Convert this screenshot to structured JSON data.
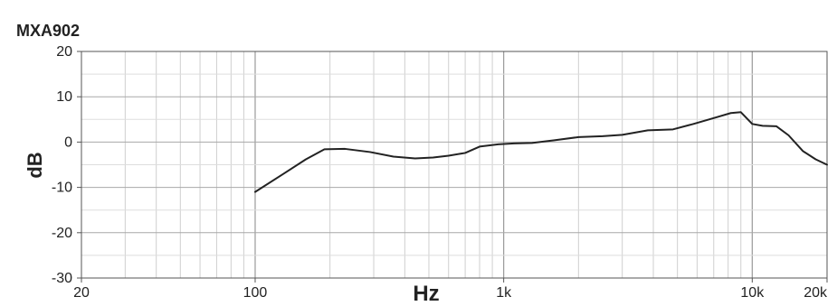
{
  "chart_data": {
    "type": "line",
    "title": "MXA902",
    "xlabel": "Hz",
    "ylabel": "dB",
    "x_scale": "log",
    "xlim": [
      20,
      20000
    ],
    "ylim": [
      -30,
      20
    ],
    "grid": true,
    "x_ticks": [
      {
        "value": 20,
        "label": "20"
      },
      {
        "value": 100,
        "label": "100"
      },
      {
        "value": 1000,
        "label": "1k"
      },
      {
        "value": 10000,
        "label": "10k"
      },
      {
        "value": 20000,
        "label": "20k"
      }
    ],
    "y_ticks": [
      {
        "value": 20,
        "label": "20"
      },
      {
        "value": 10,
        "label": "10"
      },
      {
        "value": 0,
        "label": "0"
      },
      {
        "value": -10,
        "label": "-10"
      },
      {
        "value": -20,
        "label": "-20"
      },
      {
        "value": -30,
        "label": "-30"
      }
    ],
    "series": [
      {
        "x": [
          100,
          130,
          160,
          190,
          230,
          290,
          360,
          440,
          520,
          600,
          700,
          800,
          950,
          1100,
          1300,
          1600,
          2000,
          2500,
          3000,
          3800,
          4800,
          5800,
          7000,
          8200,
          9000,
          10000,
          11000,
          12500,
          14000,
          16000,
          18000,
          20000
        ],
        "y": [
          -11,
          -7,
          -3.8,
          -1.6,
          -1.5,
          -2.2,
          -3.2,
          -3.6,
          -3.4,
          -3.0,
          -2.4,
          -1.0,
          -0.5,
          -0.3,
          -0.2,
          0.4,
          1.1,
          1.3,
          1.6,
          2.6,
          2.8,
          4.0,
          5.3,
          6.4,
          6.6,
          4.0,
          3.6,
          3.5,
          1.5,
          -2.0,
          -3.8,
          -5.0
        ]
      }
    ],
    "colors": {
      "line": "#222222",
      "grid": "#cfcfcf",
      "axis": "#555555"
    }
  }
}
